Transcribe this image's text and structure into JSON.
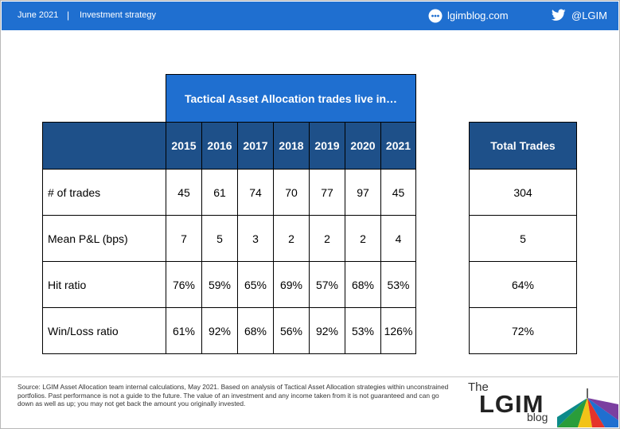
{
  "header": {
    "date": "June 2021",
    "separator": "|",
    "section": "Investment strategy",
    "site": "lgimblog.com",
    "handle": "@LGIM",
    "bg_color": "#1f6fd0"
  },
  "table": {
    "title": "Tactical Asset Allocation trades live in…",
    "years": [
      "2015",
      "2016",
      "2017",
      "2018",
      "2019",
      "2020",
      "2021"
    ],
    "rows": [
      {
        "label": "# of trades",
        "values": [
          "45",
          "61",
          "74",
          "70",
          "77",
          "97",
          "45"
        ]
      },
      {
        "label": "Mean P&L (bps)",
        "values": [
          "7",
          "5",
          "3",
          "2",
          "2",
          "2",
          "4"
        ]
      },
      {
        "label": "Hit ratio",
        "values": [
          "76%",
          "59%",
          "65%",
          "69%",
          "57%",
          "68%",
          "53%"
        ]
      },
      {
        "label": "Win/Loss ratio",
        "values": [
          "61%",
          "92%",
          "68%",
          "56%",
          "92%",
          "53%",
          "126%"
        ]
      }
    ],
    "header_color": "#1e5089"
  },
  "totals": {
    "header": "Total Trades",
    "values": [
      "304",
      "5",
      "64%",
      "72%"
    ]
  },
  "footer": {
    "source": "Source: LGIM Asset Allocation team internal calculations, May 2021. Based on analysis of Tactical Asset Allocation strategies within unconstrained portfolios. Past performance is not a guide to the future. The value of an investment and any income taken from it is not guaranteed and can go down as well as up; you may not get back the amount you originally invested.",
    "logo_the": "The",
    "logo_name": "LGIM",
    "logo_blog": "blog"
  }
}
